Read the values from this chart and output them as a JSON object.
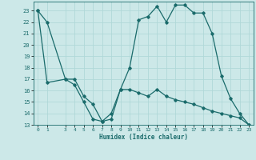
{
  "xlabel": "Humidex (Indice chaleur)",
  "bg_color": "#cce8e8",
  "line_color": "#1a6b6b",
  "grid_color": "#b0d8d8",
  "line1_x": [
    0,
    1,
    3,
    4,
    5,
    6,
    7,
    8,
    9,
    10,
    11,
    12,
    13,
    14,
    15,
    16,
    17,
    18,
    19,
    20,
    21,
    22,
    23
  ],
  "line1_y": [
    23,
    22,
    17,
    16.5,
    15,
    13.5,
    13.3,
    14,
    16.1,
    18,
    22.2,
    22.5,
    23.4,
    22,
    23.5,
    23.5,
    22.8,
    22.8,
    21,
    17.3,
    15.3,
    14,
    13
  ],
  "line2_x": [
    0,
    1,
    3,
    4,
    5,
    6,
    7,
    8,
    9,
    10,
    11,
    12,
    13,
    14,
    15,
    16,
    17,
    18,
    19,
    20,
    21,
    22,
    23
  ],
  "line2_y": [
    23,
    16.7,
    17.0,
    17.0,
    15.5,
    14.8,
    13.3,
    13.5,
    16.1,
    16.1,
    15.8,
    15.5,
    16.1,
    15.5,
    15.2,
    15.0,
    14.8,
    14.5,
    14.2,
    14.0,
    13.8,
    13.6,
    13
  ],
  "xlim": [
    -0.5,
    23.5
  ],
  "ylim": [
    13,
    23.8
  ],
  "yticks": [
    13,
    14,
    15,
    16,
    17,
    18,
    19,
    20,
    21,
    22,
    23
  ],
  "xticks": [
    0,
    1,
    3,
    4,
    5,
    6,
    7,
    8,
    9,
    10,
    11,
    12,
    13,
    14,
    15,
    16,
    17,
    18,
    19,
    20,
    21,
    22,
    23
  ]
}
